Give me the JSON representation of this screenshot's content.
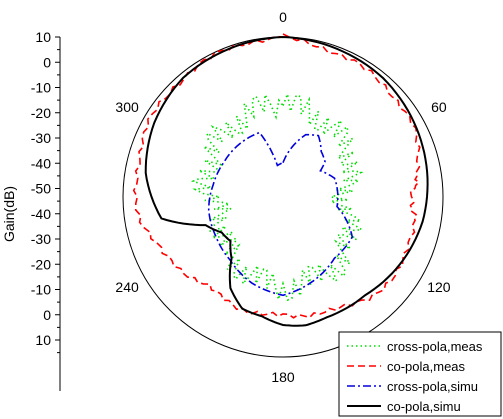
{
  "chart_data": {
    "type": "polar",
    "ylabel": "Gain(dB)",
    "radial_range": [
      -60,
      10
    ],
    "radial_tick_labels_top": [
      "10",
      "0",
      "-10",
      "-20",
      "-30",
      "-40",
      "-50"
    ],
    "radial_tick_labels_bottom": [
      "-40",
      "-30",
      "-20",
      "-10",
      "0",
      "10"
    ],
    "angle_tick_labels": [
      {
        "angle": 0,
        "label": "0"
      },
      {
        "angle": 60,
        "label": "60"
      },
      {
        "angle": 120,
        "label": "120"
      },
      {
        "angle": 180,
        "label": "180"
      },
      {
        "angle": 240,
        "label": "240"
      },
      {
        "angle": 300,
        "label": "300"
      }
    ],
    "grid": false,
    "legend_position": "bottom-right",
    "series": [
      {
        "name": "cross-pola,meas",
        "color": "#00dd00",
        "style": "dotted",
        "points": [
          [
            0,
            -20
          ],
          [
            20,
            -21
          ],
          [
            40,
            -24
          ],
          [
            60,
            -25
          ],
          [
            80,
            -33
          ],
          [
            100,
            -33
          ],
          [
            120,
            -26
          ],
          [
            140,
            -22
          ],
          [
            160,
            -22
          ],
          [
            180,
            -20
          ],
          [
            200,
            -23
          ],
          [
            220,
            -25
          ],
          [
            240,
            -30
          ],
          [
            260,
            -31
          ],
          [
            280,
            -26
          ],
          [
            300,
            -23
          ],
          [
            320,
            -22
          ],
          [
            340,
            -20
          ],
          [
            360,
            -20
          ]
        ]
      },
      {
        "name": "co-pola,meas",
        "color": "#ff0000",
        "style": "dashed",
        "points": [
          [
            0,
            10
          ],
          [
            20,
            7
          ],
          [
            40,
            6
          ],
          [
            60,
            5
          ],
          [
            80,
            0
          ],
          [
            90,
            -4
          ],
          [
            100,
            -2
          ],
          [
            120,
            0
          ],
          [
            140,
            -2
          ],
          [
            160,
            -7
          ],
          [
            180,
            -8
          ],
          [
            200,
            -8
          ],
          [
            220,
            -9
          ],
          [
            240,
            -4
          ],
          [
            260,
            3
          ],
          [
            280,
            5
          ],
          [
            300,
            7
          ],
          [
            320,
            8
          ],
          [
            340,
            9
          ],
          [
            360,
            10
          ]
        ]
      },
      {
        "name": "cross-pola,simu",
        "color": "#0000dd",
        "style": "dashdot",
        "points": [
          [
            0,
            -45
          ],
          [
            10,
            -38
          ],
          [
            20,
            -31
          ],
          [
            30,
            -29
          ],
          [
            40,
            -34
          ],
          [
            50,
            -36
          ],
          [
            55,
            -40
          ],
          [
            63,
            -38
          ],
          [
            70,
            -36
          ],
          [
            90,
            -36
          ],
          [
            100,
            -36
          ],
          [
            120,
            -25
          ],
          [
            140,
            -25
          ],
          [
            160,
            -21
          ],
          [
            180,
            -17
          ],
          [
            200,
            -20
          ],
          [
            220,
            -24
          ],
          [
            240,
            -26
          ],
          [
            260,
            -27
          ],
          [
            280,
            -29
          ],
          [
            300,
            -30
          ],
          [
            320,
            -30
          ],
          [
            340,
            -30
          ],
          [
            350,
            -46
          ],
          [
            360,
            -45
          ]
        ]
      },
      {
        "name": "co-pola,simu",
        "color": "#000000",
        "style": "solid",
        "points": [
          [
            0,
            10
          ],
          [
            20,
            9
          ],
          [
            40,
            8
          ],
          [
            60,
            6
          ],
          [
            80,
            4
          ],
          [
            100,
            2
          ],
          [
            120,
            -1
          ],
          [
            140,
            -4
          ],
          [
            160,
            -4
          ],
          [
            170,
            -3
          ],
          [
            180,
            -4
          ],
          [
            190,
            -7
          ],
          [
            200,
            -8
          ],
          [
            210,
            -14
          ],
          [
            220,
            -25
          ],
          [
            230,
            -30
          ],
          [
            240,
            -29
          ],
          [
            250,
            -24
          ],
          [
            260,
            -6
          ],
          [
            280,
            1
          ],
          [
            300,
            5
          ],
          [
            320,
            8
          ],
          [
            340,
            9
          ],
          [
            360,
            10
          ]
        ]
      }
    ]
  }
}
